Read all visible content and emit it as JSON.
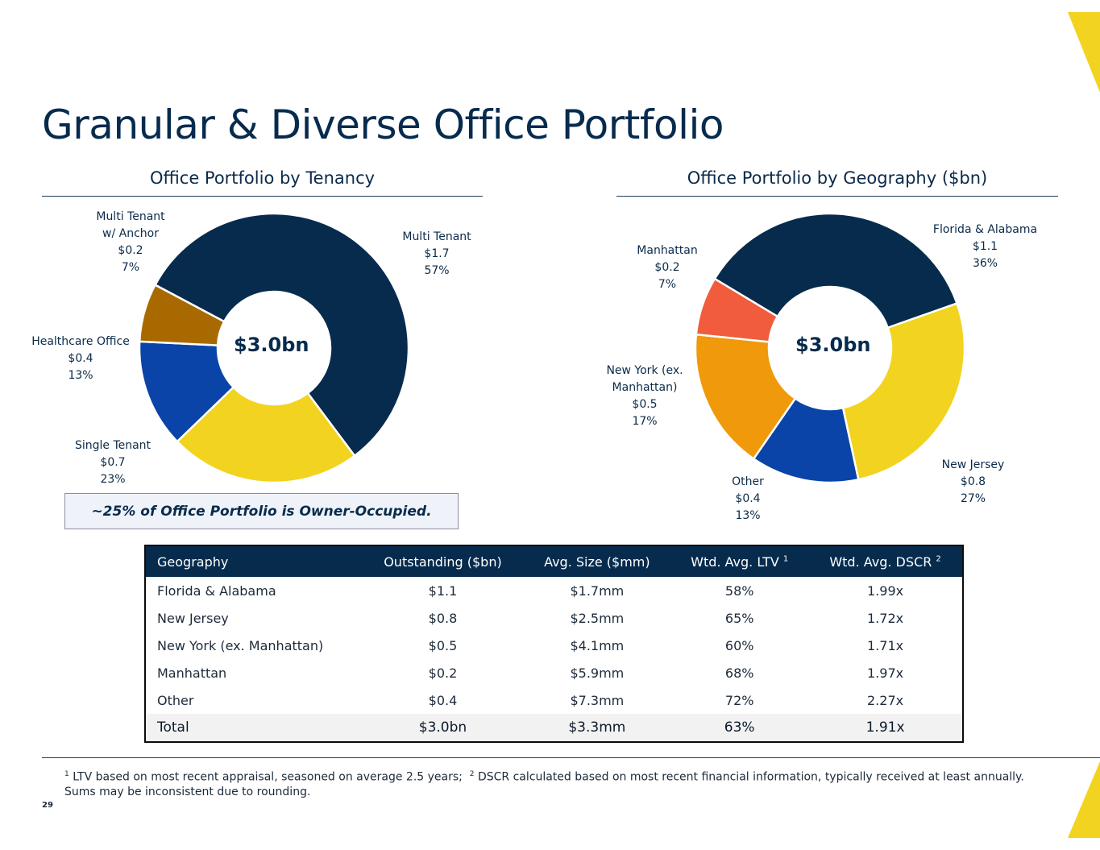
{
  "title": "Granular & Diverse Office Portfolio",
  "colors": {
    "navy": "#062b4d",
    "yellow": "#f2d31f",
    "gold": "#f0ca28",
    "blue": "#0a44a8",
    "brown": "#a86a00",
    "orange": "#f0990a",
    "red_orange": "#f05c3c"
  },
  "chart_data": [
    {
      "type": "pie",
      "title": "Office Portfolio by Tenancy",
      "center_label": "$3.0bn",
      "slices": [
        {
          "name": "Multi Tenant",
          "value": 1.7,
          "value_label": "$1.7",
          "percent": 57,
          "percent_label": "57%",
          "color": "#062b4d"
        },
        {
          "name": "Single Tenant",
          "value": 0.7,
          "value_label": "$0.7",
          "percent": 23,
          "percent_label": "23%",
          "color": "#f2d31f"
        },
        {
          "name": "Healthcare Office",
          "value": 0.4,
          "value_label": "$0.4",
          "percent": 13,
          "percent_label": "13%",
          "color": "#0a44a8"
        },
        {
          "name": "Multi Tenant w/ Anchor",
          "name_lines": [
            "Multi Tenant",
            "w/ Anchor"
          ],
          "value": 0.2,
          "value_label": "$0.2",
          "percent": 7,
          "percent_label": "7%",
          "color": "#a86a00"
        }
      ]
    },
    {
      "type": "pie",
      "title": "Office Portfolio by Geography ($bn)",
      "center_label": "$3.0bn",
      "slices": [
        {
          "name": "Florida & Alabama",
          "value": 1.1,
          "value_label": "$1.1",
          "percent": 36,
          "percent_label": "36%",
          "color": "#062b4d"
        },
        {
          "name": "New Jersey",
          "value": 0.8,
          "value_label": "$0.8",
          "percent": 27,
          "percent_label": "27%",
          "color": "#f2d31f"
        },
        {
          "name": "Other",
          "value": 0.4,
          "value_label": "$0.4",
          "percent": 13,
          "percent_label": "13%",
          "color": "#0a44a8"
        },
        {
          "name": "New York (ex. Manhattan)",
          "name_lines": [
            "New York (ex.",
            "Manhattan)"
          ],
          "value": 0.5,
          "value_label": "$0.5",
          "percent": 17,
          "percent_label": "17%",
          "color": "#f0990a"
        },
        {
          "name": "Manhattan",
          "value": 0.2,
          "value_label": "$0.2",
          "percent": 7,
          "percent_label": "7%",
          "color": "#f05c3c"
        }
      ]
    }
  ],
  "callout": "~25% of Office Portfolio is Owner-Occupied.",
  "table": {
    "headers": [
      "Geography",
      "Outstanding ($bn)",
      "Avg. Size ($mm)",
      "Wtd. Avg. LTV",
      "Wtd. Avg. DSCR"
    ],
    "header_sups": [
      "",
      "",
      "",
      "1",
      "2"
    ],
    "rows": [
      [
        "Florida & Alabama",
        "$1.1",
        "$1.7mm",
        "58%",
        "1.99x"
      ],
      [
        "New Jersey",
        "$0.8",
        "$2.5mm",
        "65%",
        "1.72x"
      ],
      [
        "New York (ex. Manhattan)",
        "$0.5",
        "$4.1mm",
        "60%",
        "1.71x"
      ],
      [
        "Manhattan",
        "$0.2",
        "$5.9mm",
        "68%",
        "1.97x"
      ],
      [
        "Other",
        "$0.4",
        "$7.3mm",
        "72%",
        "2.27x"
      ]
    ],
    "total": [
      "Total",
      "$3.0bn",
      "$3.3mm",
      "63%",
      "1.91x"
    ]
  },
  "footnotes": {
    "sup1": "1",
    "note1": "LTV based on most recent appraisal, seasoned on average 2.5 years;",
    "sup2": "2",
    "note2": "DSCR calculated based on most recent financial information, typically received at least annually.",
    "line2": "Sums may be inconsistent due to rounding."
  },
  "page_number": "29"
}
